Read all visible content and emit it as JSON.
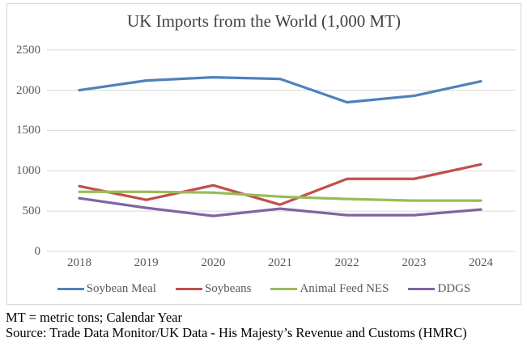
{
  "chart_data": {
    "type": "line",
    "title": "UK Imports from the World (1,000 MT)",
    "x": [
      "2018",
      "2019",
      "2020",
      "2021",
      "2022",
      "2023",
      "2024"
    ],
    "series": [
      {
        "name": "Soybean Meal",
        "color": "#4F81BD",
        "values": [
          2000,
          2120,
          2160,
          2140,
          1850,
          1930,
          2110
        ]
      },
      {
        "name": "Soybeans",
        "color": "#C0504D",
        "values": [
          810,
          640,
          820,
          580,
          900,
          900,
          1080
        ]
      },
      {
        "name": "Animal Feed NES",
        "color": "#9BBB59",
        "values": [
          740,
          740,
          730,
          680,
          650,
          630,
          630
        ]
      },
      {
        "name": "DDGS",
        "color": "#8064A2",
        "values": [
          660,
          540,
          440,
          530,
          450,
          450,
          520
        ]
      }
    ],
    "yticks": [
      0,
      500,
      1000,
      1500,
      2000,
      2500
    ],
    "ylim": [
      0,
      2500
    ],
    "grid": true,
    "legend_position": "bottom",
    "xlabel": "",
    "ylabel": ""
  },
  "footnotes": {
    "line1": "MT = metric tons; Calendar Year",
    "line2": "Source: Trade Data Monitor/UK Data - His Majesty’s Revenue and Customs (HMRC)"
  },
  "colors": {
    "gridline": "#d9d9d9",
    "tick_text": "#595959",
    "legend_text": "#595959",
    "title_text": "#404040",
    "box_border": "#d6d6d6"
  }
}
